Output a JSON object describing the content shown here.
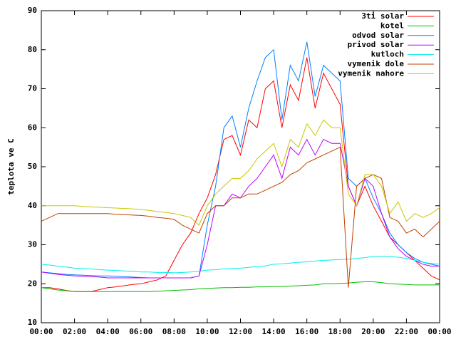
{
  "chart_data": {
    "type": "line",
    "ylabel": "teplota ve C",
    "x": [
      0,
      0.5,
      1,
      1.5,
      2,
      2.5,
      3,
      3.5,
      4,
      4.5,
      5,
      5.5,
      6,
      6.5,
      7,
      7.5,
      8,
      8.5,
      9,
      9.5,
      10,
      10.5,
      11,
      11.5,
      12,
      12.5,
      13,
      13.5,
      14,
      14.5,
      15,
      15.5,
      16,
      16.5,
      17,
      17.5,
      18,
      18.5,
      19,
      19.5,
      20,
      20.5,
      21,
      21.5,
      22,
      22.5,
      23,
      23.5,
      24
    ],
    "xlim": [
      0,
      24
    ],
    "xticks": [
      {
        "value": 0,
        "label": "00:00"
      },
      {
        "value": 2,
        "label": "02:00"
      },
      {
        "value": 4,
        "label": "04:00"
      },
      {
        "value": 6,
        "label": "06:00"
      },
      {
        "value": 8,
        "label": "08:00"
      },
      {
        "value": 10,
        "label": "10:00"
      },
      {
        "value": 12,
        "label": "12:00"
      },
      {
        "value": 14,
        "label": "14:00"
      },
      {
        "value": 16,
        "label": "16:00"
      },
      {
        "value": 18,
        "label": "18:00"
      },
      {
        "value": 20,
        "label": "20:00"
      },
      {
        "value": 22,
        "label": "22:00"
      },
      {
        "value": 24,
        "label": "00:00"
      }
    ],
    "ylim": [
      10,
      90
    ],
    "yticks": [
      10,
      20,
      30,
      40,
      50,
      60,
      70,
      80,
      90
    ],
    "legend": "top-right",
    "series": [
      {
        "name": "3ti solar",
        "color": "#ff0000",
        "values": [
          19,
          19,
          18.7,
          18.3,
          18,
          18,
          18,
          18.5,
          19,
          19.2,
          19.5,
          19.8,
          20,
          20.5,
          21,
          22,
          26,
          30,
          33,
          38,
          42,
          48,
          57,
          58,
          53,
          62,
          60,
          70,
          72,
          60,
          71,
          67,
          78,
          65,
          74,
          70,
          66,
          45,
          40,
          45,
          40,
          36,
          32,
          30,
          28,
          26,
          24,
          22,
          21
        ]
      },
      {
        "name": "kotel",
        "color": "#00c000",
        "values": [
          19,
          18.7,
          18.4,
          18.2,
          18,
          18,
          18,
          18,
          18,
          18,
          18,
          18,
          18,
          18,
          18.1,
          18.2,
          18.3,
          18.4,
          18.5,
          18.7,
          18.8,
          18.9,
          19,
          19,
          19.1,
          19.1,
          19.2,
          19.2,
          19.3,
          19.3,
          19.4,
          19.5,
          19.6,
          19.7,
          20,
          20,
          20.1,
          20.2,
          20.4,
          20.5,
          20.5,
          20.3,
          20,
          19.9,
          19.8,
          19.7,
          19.7,
          19.7,
          19.7
        ]
      },
      {
        "name": "odvod solar",
        "color": "#0080ff",
        "values": [
          23,
          22.8,
          22.6,
          22.4,
          22.3,
          22.2,
          22.1,
          22,
          22,
          21.9,
          21.8,
          21.7,
          21.6,
          21.5,
          21.5,
          21.5,
          21.5,
          21.5,
          21.5,
          22,
          35,
          45,
          60,
          63,
          55,
          65,
          72,
          78,
          80,
          62,
          76,
          72,
          82,
          68,
          76,
          74,
          72,
          47,
          45,
          47,
          42,
          38,
          33,
          30,
          28,
          26.5,
          25.5,
          25,
          24.5
        ]
      },
      {
        "name": "privod solar",
        "color": "#c000ff",
        "values": [
          23,
          22.7,
          22.4,
          22.2,
          22,
          21.9,
          21.8,
          21.7,
          21.5,
          21.5,
          21.5,
          21.5,
          21.5,
          21.5,
          21.5,
          21.5,
          21.5,
          21.5,
          21.5,
          22,
          30,
          40,
          40,
          43,
          42,
          45,
          47,
          50,
          53,
          47,
          55,
          53,
          57,
          53,
          57,
          56,
          56,
          45,
          40,
          47,
          45,
          38,
          32,
          29,
          27,
          26,
          25,
          24.5,
          24.5
        ]
      },
      {
        "name": "kutloch",
        "color": "#00eeee",
        "values": [
          25,
          24.8,
          24.5,
          24.3,
          24,
          23.9,
          23.8,
          23.6,
          23.5,
          23.4,
          23.3,
          23.2,
          23,
          23,
          22.9,
          22.9,
          22.8,
          22.9,
          23,
          23.2,
          23.5,
          23.6,
          23.8,
          23.9,
          24,
          24.2,
          24.4,
          24.6,
          25,
          25.1,
          25.3,
          25.5,
          25.6,
          25.8,
          26,
          26.1,
          26.2,
          26.3,
          26.5,
          26.7,
          27,
          27,
          27,
          26.8,
          26.5,
          26,
          25.5,
          25.2,
          25
        ]
      },
      {
        "name": "vymenik dole",
        "color": "#c04000",
        "values": [
          36,
          37,
          38,
          38,
          38,
          38,
          38,
          38,
          38,
          37.8,
          37.7,
          37.6,
          37.5,
          37.3,
          37,
          36.8,
          36.5,
          35,
          34,
          33,
          38,
          40,
          40,
          42,
          42,
          43,
          43,
          44,
          45,
          46,
          48,
          49,
          51,
          52,
          53,
          54,
          55,
          19,
          45,
          47,
          48,
          47,
          37,
          36,
          33,
          34,
          32,
          34,
          36
        ]
      },
      {
        "name": "vymenik nahore",
        "color": "#c8c800",
        "values": [
          40,
          40,
          40,
          40,
          40,
          39.8,
          39.7,
          39.6,
          39.5,
          39.4,
          39.3,
          39.2,
          39,
          38.8,
          38.5,
          38.3,
          38,
          37.5,
          37,
          35,
          40,
          43,
          45,
          47,
          47,
          49,
          52,
          54,
          56,
          50,
          57,
          55,
          61,
          58,
          62,
          60,
          60,
          43,
          40,
          48,
          48,
          45,
          38,
          41,
          36,
          38,
          37,
          38,
          39.5
        ]
      }
    ]
  }
}
